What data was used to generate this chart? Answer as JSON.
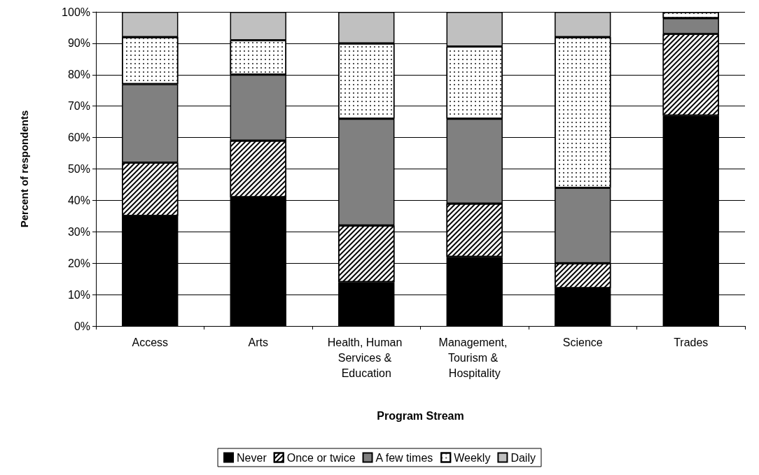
{
  "chart_data": {
    "type": "bar",
    "stacked": true,
    "xlabel": "Program Stream",
    "ylabel": "Percent of respondents",
    "categories": [
      "Access",
      "Arts",
      "Health, Human Services & Education",
      "Management, Tourism & Hospitality",
      "Science",
      "Trades"
    ],
    "series": [
      {
        "name": "Never",
        "color": "#000000",
        "values": [
          35,
          41,
          14,
          22,
          12,
          67
        ]
      },
      {
        "name": "Once or twice",
        "color": "#ffffff",
        "values": [
          17,
          18,
          18,
          17,
          8,
          26
        ]
      },
      {
        "name": "A few times",
        "color": "#808080",
        "values": [
          25,
          21,
          34,
          27,
          24,
          5
        ]
      },
      {
        "name": "Weekly",
        "color": "#ffffff",
        "values": [
          15,
          11,
          24,
          23,
          48,
          2
        ]
      },
      {
        "name": "Daily",
        "color": "#c0c0c0",
        "values": [
          8,
          9,
          10,
          11,
          8,
          null
        ]
      }
    ],
    "ylim": [
      0,
      100
    ],
    "yticks": [
      {
        "value": 0,
        "label": "0%"
      },
      {
        "value": 10,
        "label": "10%"
      },
      {
        "value": 20,
        "label": "20%"
      },
      {
        "value": 30,
        "label": "30%"
      },
      {
        "value": 40,
        "label": "40%"
      },
      {
        "value": 50,
        "label": "50%"
      },
      {
        "value": 60,
        "label": "60%"
      },
      {
        "value": 70,
        "label": "70%"
      },
      {
        "value": 80,
        "label": "80%"
      },
      {
        "value": 90,
        "label": "90%"
      },
      {
        "value": 100,
        "label": "100%"
      }
    ],
    "grid": "y",
    "legend": "bottom"
  }
}
